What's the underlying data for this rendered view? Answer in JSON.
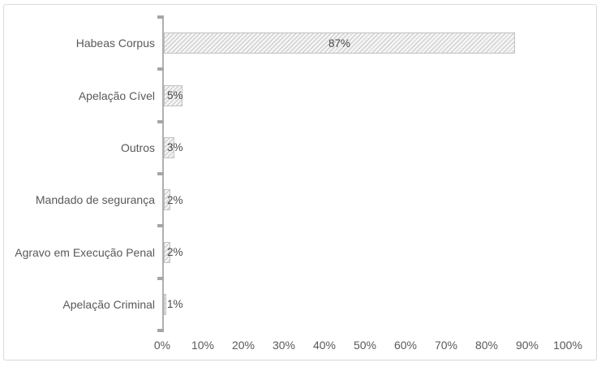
{
  "chart_data": {
    "type": "bar",
    "orientation": "horizontal",
    "title": "",
    "categories": [
      "Habeas Corpus",
      "Apelação Cível",
      "Outros",
      "Mandado de segurança",
      "Agravo em Execução Penal",
      "Apelação Criminal"
    ],
    "values": [
      87,
      5,
      3,
      2,
      2,
      1
    ],
    "value_labels": [
      "87%",
      "5%",
      "3%",
      "2%",
      "2%",
      "1%"
    ],
    "x_axis": {
      "ticks": [
        "0%",
        "10%",
        "20%",
        "30%",
        "40%",
        "50%",
        "60%",
        "70%",
        "80%",
        "90%",
        "100%"
      ],
      "min": 0,
      "max": 100
    },
    "ylabel": "",
    "xlabel": "",
    "legend": "none",
    "grid": false,
    "bar_style": "light-upward-diagonal-hatch"
  },
  "colors": {
    "background": "#ffffff",
    "frame_border": "#dadada",
    "axis_line": "#b0b0b0",
    "tick": "#a6a6a6",
    "bar_border": "#c2c2c2",
    "hatch_line": "#c8c8c8",
    "hatch_bg": "#f4f4f4",
    "label_text": "#595959",
    "value_text": "#4a4a4a"
  }
}
